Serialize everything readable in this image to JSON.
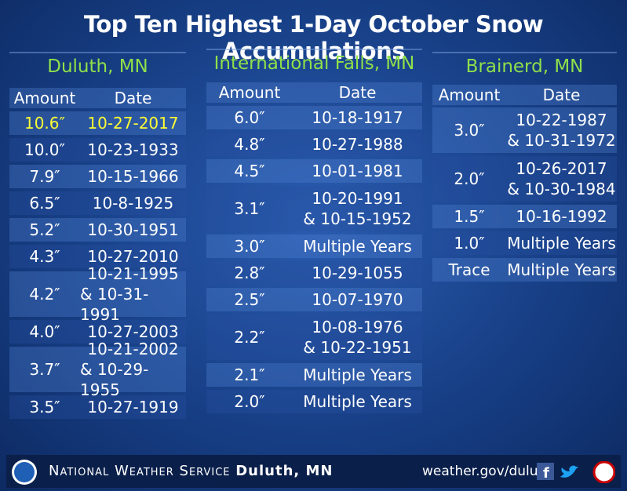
{
  "title": "Top Ten Highest 1-Day October Snow Accumulations",
  "tables": [
    {
      "city": "Duluth, MN",
      "headers": [
        "Amount",
        "Date"
      ],
      "rows": [
        [
          "10.6″",
          [
            "10-27-2017"
          ]
        ],
        [
          "10.0″",
          [
            "10-23-1933"
          ]
        ],
        [
          "7.9″",
          [
            "10-15-1966"
          ]
        ],
        [
          "6.5″",
          [
            "10-8-1925"
          ]
        ],
        [
          "5.2″",
          [
            "10-30-1951"
          ]
        ],
        [
          "4.3″",
          [
            "10-27-2010"
          ]
        ],
        [
          "4.2″",
          [
            "10-21-1995",
            "& 10-31-1991"
          ]
        ],
        [
          "4.0″",
          [
            "10-27-2003"
          ]
        ],
        [
          "3.7″",
          [
            "10-21-2002",
            "& 10-29-1955"
          ]
        ],
        [
          "3.5″",
          [
            "10-27-1919"
          ]
        ]
      ]
    },
    {
      "city": "International Falls, MN",
      "headers": [
        "Amount",
        "Date"
      ],
      "rows": [
        [
          "6.0″",
          [
            "10-18-1917"
          ]
        ],
        [
          "4.8″",
          [
            "10-27-1988"
          ]
        ],
        [
          "4.5″",
          [
            "10-01-1981"
          ]
        ],
        [
          "3.1″",
          [
            "10-20-1991",
            "& 10-15-1952"
          ]
        ],
        [
          "3.0″",
          [
            "Multiple Years"
          ]
        ],
        [
          "2.8″",
          [
            "10-29-1055"
          ]
        ],
        [
          "2.5″",
          [
            "10-07-1970"
          ]
        ],
        [
          "2.2″",
          [
            "10-08-1976",
            "& 10-22-1951"
          ]
        ],
        [
          "2.1″",
          [
            "Multiple Years"
          ]
        ],
        [
          "2.0″",
          [
            "Multiple Years"
          ]
        ]
      ]
    },
    {
      "city": "Brainerd, MN",
      "headers": [
        "Amount",
        "Date"
      ],
      "rows": [
        [
          "3.0″",
          [
            "10-22-1987",
            "& 10-31-1972"
          ]
        ],
        [
          "2.0″",
          [
            "10-26-2017",
            "& 10-30-1984"
          ]
        ],
        [
          "1.5″",
          [
            "10-16-1992"
          ]
        ],
        [
          "1.0″",
          [
            "Multiple Years"
          ]
        ],
        [
          "Trace",
          [
            "Multiple Years"
          ]
        ]
      ]
    }
  ],
  "footer": {
    "agency": "National Weather Service",
    "office": "Duluth, MN",
    "url": "weather.gov/duluth"
  }
}
